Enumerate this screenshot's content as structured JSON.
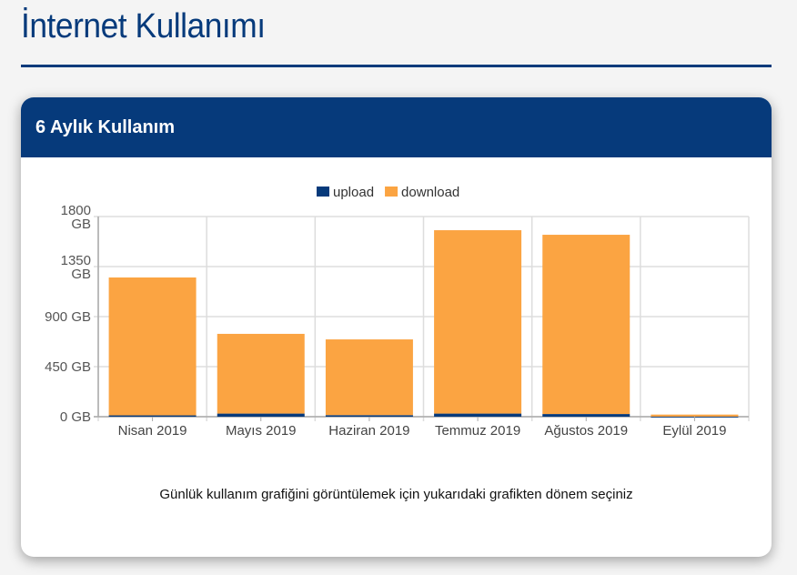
{
  "page": {
    "title": "İnternet Kullanımı"
  },
  "card": {
    "title": "6 Aylık Kullanım",
    "hint": "Günlük kullanım grafiğini görüntülemek için yukarıdaki grafikten dönem seçiniz"
  },
  "chart_data": {
    "type": "bar",
    "stacked": true,
    "categories": [
      "Nisan 2019",
      "Mayıs 2019",
      "Haziran 2019",
      "Temmuz 2019",
      "Ağustos 2019",
      "Eylül 2019"
    ],
    "series": [
      {
        "name": "upload",
        "color": "#063a7b",
        "values": [
          12,
          28,
          14,
          28,
          24,
          1
        ]
      },
      {
        "name": "download",
        "color": "#fba442",
        "values": [
          1240,
          717,
          681,
          1649,
          1612,
          18
        ]
      }
    ],
    "yticks": [
      "0 GB",
      "450 GB",
      "900 GB",
      "1350 GB",
      "1800 GB"
    ],
    "ylim": [
      0,
      1800
    ],
    "unit": "GB",
    "grid": true,
    "legend": "top"
  }
}
